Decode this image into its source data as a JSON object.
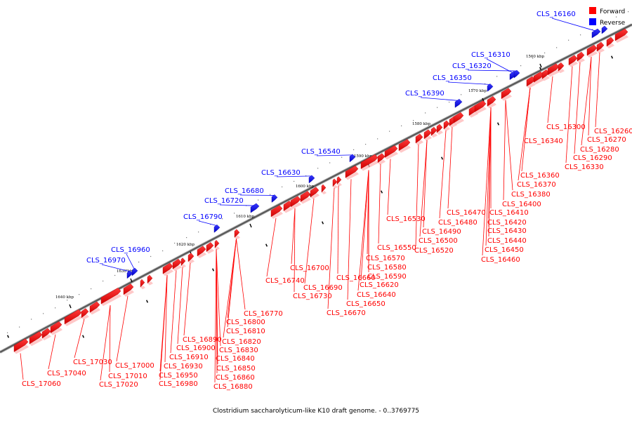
{
  "legend": {
    "forward_label": "Forward",
    "reverse_label": "Reverse",
    "forward_color": "#ff0000",
    "reverse_color": "#0000ff"
  },
  "caption": "Clostridium saccharolyticum-like K10 draft genome. - 0..3769775",
  "ruler_ticks": [
    "1560 kbp",
    "1570 kbp",
    "1580 kbp",
    "1590 kbp",
    "1600 kbp",
    "1610 kbp",
    "1620 kbp",
    "1630 kbp",
    "1640 kbp"
  ],
  "reverse_labels": [
    "CLS_16160",
    "CLS_16310",
    "CLS_16320",
    "CLS_16350",
    "CLS_16390",
    "CLS_16540",
    "CLS_16630",
    "CLS_16680",
    "CLS_16720",
    "CLS_16790",
    "CLS_16960",
    "CLS_16970"
  ],
  "forward_labels": [
    "CLS_16260",
    "CLS_16270",
    "CLS_16280",
    "CLS_16290",
    "CLS_16300",
    "CLS_16330",
    "CLS_16340",
    "CLS_16360",
    "CLS_16370",
    "CLS_16380",
    "CLS_16400",
    "CLS_16410",
    "CLS_16420",
    "CLS_16430",
    "CLS_16440",
    "CLS_16450",
    "CLS_16460",
    "CLS_16470",
    "CLS_16480",
    "CLS_16490",
    "CLS_16500",
    "CLS_16520",
    "CLS_16530",
    "CLS_16550",
    "CLS_16570",
    "CLS_16580",
    "CLS_16590",
    "CLS_16620",
    "CLS_16640",
    "CLS_16650",
    "CLS_16660",
    "CLS_16670",
    "CLS_16690",
    "CLS_16700",
    "CLS_16730",
    "CLS_16740",
    "CLS_16770",
    "CLS_16800",
    "CLS_16810",
    "CLS_16820",
    "CLS_16830",
    "CLS_16840",
    "CLS_16850",
    "CLS_16860",
    "CLS_16880",
    "CLS_16890",
    "CLS_16900",
    "CLS_16910",
    "CLS_16930",
    "CLS_16950",
    "CLS_16980",
    "CLS_17000",
    "CLS_17010",
    "CLS_17020",
    "CLS_17030",
    "CLS_17040",
    "CLS_17060"
  ]
}
